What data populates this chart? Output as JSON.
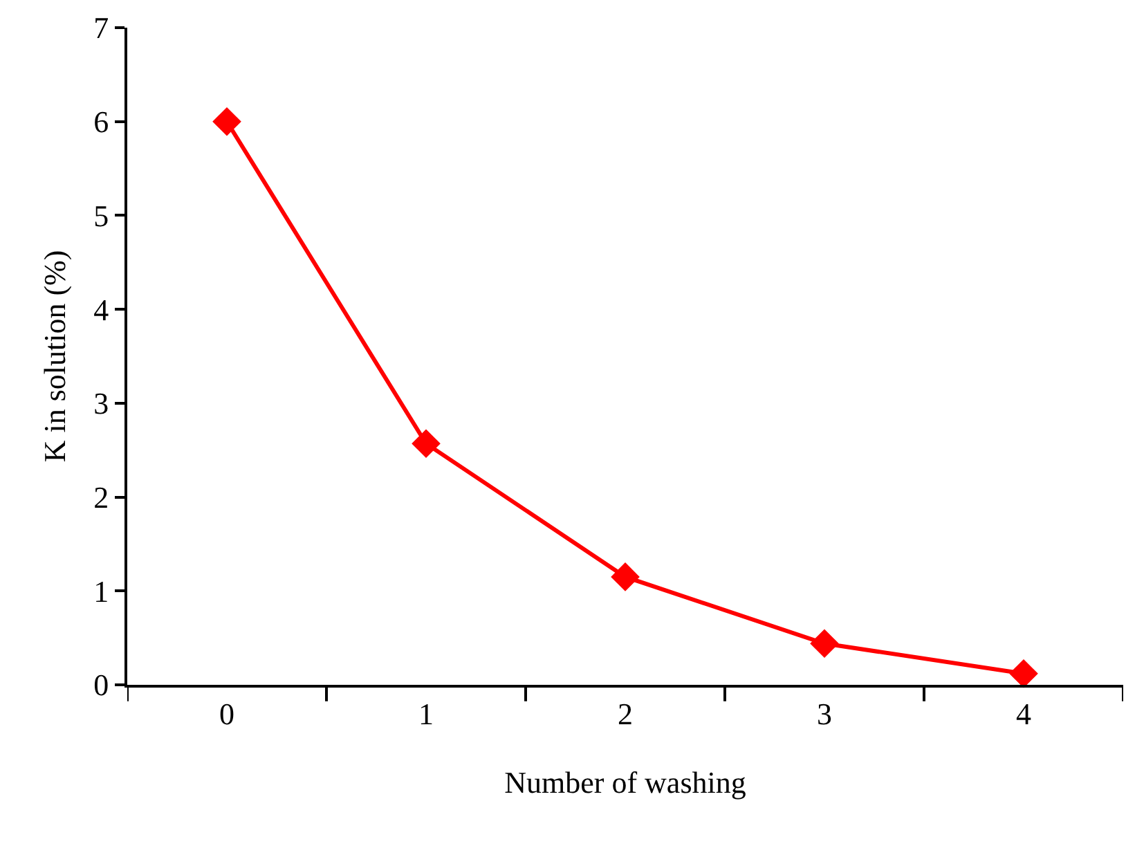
{
  "chart_data": {
    "type": "line",
    "xlabel": "Number of washing",
    "ylabel": "K in solution (%)",
    "categories": [
      "0",
      "1",
      "2",
      "3",
      "4"
    ],
    "series": [
      {
        "color": "#ff0000",
        "values": [
          6.0,
          2.57,
          1.15,
          0.44,
          0.12
        ]
      }
    ],
    "ylim": [
      0,
      7
    ],
    "yticks": [
      0,
      1,
      2,
      3,
      4,
      5,
      6,
      7
    ],
    "marker": "diamond",
    "line_style": "solid"
  }
}
